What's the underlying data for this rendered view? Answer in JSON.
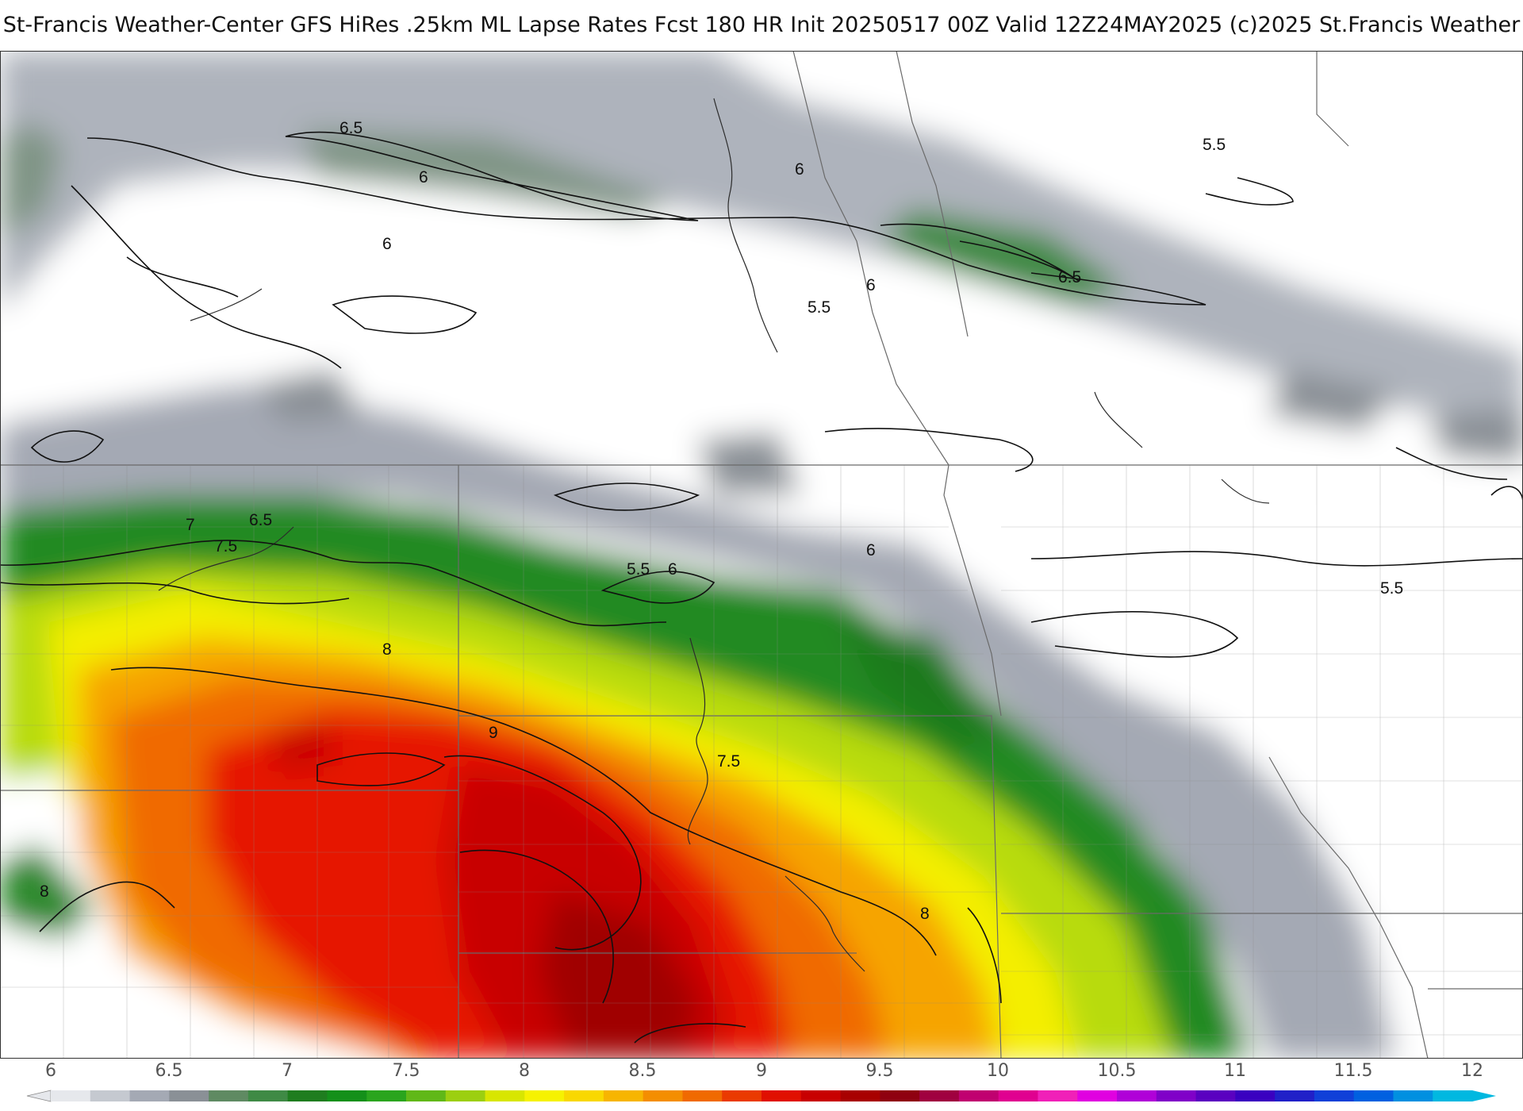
{
  "title": "St-Francis Weather-Center GFS HiRes .25km ML Lapse Rates  Fcst 180 HR Init 20250517 00Z  Valid 12Z24MAY2025    (c)2025 St.Francis Weather",
  "contour_labels": [
    "6.5",
    "6",
    "6",
    "6",
    "5.5",
    "6",
    "6.5",
    "5.5",
    "7",
    "6.5",
    "7.5",
    "5.5",
    "6",
    "6",
    "5.5",
    "8",
    "9",
    "7.5",
    "8",
    "8"
  ],
  "colorbar": {
    "tick_labels": [
      "6",
      "6.5",
      "7",
      "7.5",
      "8",
      "8.5",
      "9",
      "9.5",
      "10",
      "10.5",
      "11",
      "11.5",
      "12"
    ],
    "range": [
      6,
      12
    ],
    "colors": [
      "#e6e8ec",
      "#c5c9d0",
      "#a4a9b4",
      "#8a9096",
      "#5f8a62",
      "#3f8a45",
      "#1f7d1f",
      "#14901a",
      "#2aa51e",
      "#60b818",
      "#9ccf10",
      "#d8e600",
      "#f6f200",
      "#f9d800",
      "#f7b500",
      "#f48e00",
      "#f06a00",
      "#ea3a00",
      "#e01000",
      "#c80000",
      "#a80000",
      "#8f0010",
      "#a00040",
      "#c00070",
      "#e00090",
      "#f020b8",
      "#e000e0",
      "#b000d8",
      "#8000c8",
      "#5a00c0",
      "#3a00c0",
      "#2020c8",
      "#1040d8",
      "#0060e0",
      "#0090e0",
      "#00b8e0"
    ]
  }
}
